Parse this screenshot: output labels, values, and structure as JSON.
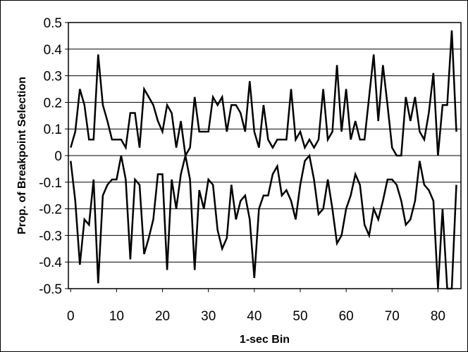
{
  "chart_data": {
    "type": "line",
    "title": "",
    "xlabel": "1-sec Bin",
    "ylabel": "Prop. of Breakpoint Selection",
    "xlim": [
      -0.5,
      85
    ],
    "ylim": [
      -0.5,
      0.5
    ],
    "x_ticks": [
      0,
      10,
      20,
      30,
      40,
      50,
      60,
      70,
      80
    ],
    "x_tick_labels": [
      "0",
      "10",
      "20",
      "30",
      "40",
      "50",
      "60",
      "70",
      "80"
    ],
    "y_ticks": [
      -0.5,
      -0.4,
      -0.3,
      -0.2,
      -0.1,
      0,
      0.1,
      0.2,
      0.3,
      0.4,
      0.5
    ],
    "y_tick_labels": [
      "-0.5",
      "-0.4",
      "-0.3",
      "-0.2",
      "-0.1",
      "0",
      "0.1",
      "0.2",
      "0.3",
      "0.4",
      "0.5"
    ],
    "grid": "horizontal",
    "legend": "none",
    "line_color": "#000000",
    "x": [
      0,
      1,
      2,
      3,
      4,
      5,
      6,
      7,
      8,
      9,
      10,
      11,
      12,
      13,
      14,
      15,
      16,
      17,
      18,
      19,
      20,
      21,
      22,
      23,
      24,
      25,
      26,
      27,
      28,
      29,
      30,
      31,
      32,
      33,
      34,
      35,
      36,
      37,
      38,
      39,
      40,
      41,
      42,
      43,
      44,
      45,
      46,
      47,
      48,
      49,
      50,
      51,
      52,
      53,
      54,
      55,
      56,
      57,
      58,
      59,
      60,
      61,
      62,
      63,
      64,
      65,
      66,
      67,
      68,
      69,
      70,
      71,
      72,
      73,
      74,
      75,
      76,
      77,
      78,
      79,
      80,
      81,
      82,
      83,
      84
    ],
    "series": [
      {
        "values": [
          0.03,
          0.09,
          0.25,
          0.19,
          0.06,
          0.06,
          0.38,
          0.19,
          0.13,
          0.06,
          0.06,
          0.06,
          0.03,
          0.16,
          0.16,
          0.03,
          0.25,
          0.22,
          0.19,
          0.13,
          0.09,
          0.19,
          0.16,
          0.03,
          0.13,
          0.0,
          0.03,
          0.22,
          0.09,
          0.09,
          0.09,
          0.22,
          0.19,
          0.22,
          0.09,
          0.19,
          0.19,
          0.16,
          0.09,
          0.28,
          0.09,
          0.03,
          0.19,
          0.06,
          0.03,
          0.06,
          0.06,
          0.06,
          0.25,
          0.06,
          0.09,
          0.03,
          0.06,
          0.03,
          0.06,
          0.25,
          0.06,
          0.09,
          0.34,
          0.09,
          0.25,
          0.06,
          0.13,
          0.06,
          0.06,
          0.22,
          0.38,
          0.13,
          0.34,
          0.19,
          0.03,
          0.0,
          0.0,
          0.22,
          0.13,
          0.22,
          0.09,
          0.06,
          0.16,
          0.31,
          0.0,
          0.19,
          0.19,
          0.47,
          0.09
        ]
      },
      {
        "values": [
          -0.02,
          -0.17,
          -0.41,
          -0.24,
          -0.26,
          -0.09,
          -0.48,
          -0.15,
          -0.11,
          -0.09,
          -0.09,
          0.0,
          -0.09,
          -0.39,
          -0.09,
          -0.11,
          -0.37,
          -0.31,
          -0.24,
          -0.07,
          -0.07,
          -0.43,
          -0.09,
          -0.2,
          -0.07,
          0.0,
          -0.09,
          -0.43,
          -0.13,
          -0.2,
          -0.09,
          -0.11,
          -0.28,
          -0.35,
          -0.31,
          -0.11,
          -0.24,
          -0.17,
          -0.15,
          -0.24,
          -0.46,
          -0.2,
          -0.15,
          -0.15,
          -0.07,
          -0.04,
          -0.15,
          -0.13,
          -0.17,
          -0.24,
          -0.11,
          -0.02,
          0.0,
          -0.09,
          -0.22,
          -0.2,
          -0.09,
          -0.2,
          -0.33,
          -0.3,
          -0.2,
          -0.15,
          -0.07,
          -0.11,
          -0.26,
          -0.3,
          -0.2,
          -0.24,
          -0.17,
          -0.09,
          -0.09,
          -0.11,
          -0.17,
          -0.26,
          -0.24,
          -0.17,
          -0.02,
          -0.11,
          -0.13,
          -0.17,
          -0.5,
          -0.2,
          -0.5,
          -0.5,
          -0.11
        ]
      }
    ]
  }
}
